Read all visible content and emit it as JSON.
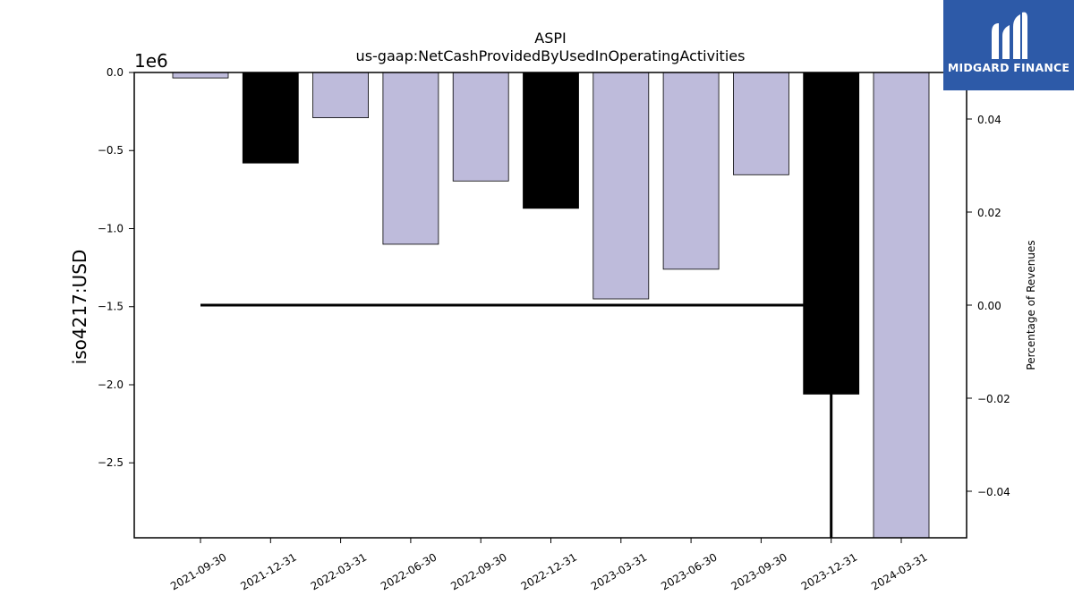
{
  "logo": {
    "text": "MIDGARD FINANCE",
    "icon": "midgard-m-logo-icon",
    "background": "#2d5aa8"
  },
  "chart_data": {
    "type": "bar",
    "title": "ASPI",
    "subtitle": "us-gaap:NetCashProvidedByUsedInOperatingActivities",
    "ylabel": "iso4217:USD",
    "ylabel_right": "Percentage of Revenues",
    "y_offset_label": "1e6",
    "categories": [
      "2021-09-30",
      "2021-12-31",
      "2022-03-31",
      "2022-06-30",
      "2022-09-30",
      "2022-12-31",
      "2023-03-31",
      "2023-06-30",
      "2023-09-30",
      "2023-12-31",
      "2024-03-31"
    ],
    "values": [
      -35000,
      -580000,
      -290000,
      -1100000,
      -695000,
      -870000,
      -1450000,
      -1260000,
      -655000,
      -2060000,
      -2980000
    ],
    "bar_colors": [
      "#bebbdb",
      "#000000",
      "#bebbdb",
      "#bebbdb",
      "#bebbdb",
      "#000000",
      "#bebbdb",
      "#bebbdb",
      "#bebbdb",
      "#000000",
      "#bebbdb"
    ],
    "ylim": [
      -2980000,
      0
    ],
    "yticks": [
      0.0,
      -0.5,
      -1.0,
      -1.5,
      -2.0,
      -2.5
    ],
    "ytick_labels": [
      "0.0",
      "−0.5",
      "−1.0",
      "−1.5",
      "−2.0",
      "−2.5"
    ],
    "secondary_axis": {
      "ylim": [
        -0.05,
        0.05
      ],
      "yticks": [
        0.04,
        0.02,
        0.0,
        -0.02,
        -0.04
      ],
      "ytick_labels": [
        "0.04",
        "0.02",
        "0.00",
        "−0.02",
        "−0.04"
      ],
      "line": {
        "x": [
          "2021-09-30",
          "2021-12-31",
          "2022-03-31",
          "2022-06-30",
          "2022-09-30",
          "2022-12-31",
          "2023-03-31",
          "2023-06-30",
          "2023-09-30",
          "2023-12-31",
          "2023-12-31"
        ],
        "values": [
          0.0,
          0.0,
          0.0,
          0.0,
          0.0,
          0.0,
          0.0,
          0.0,
          0.0,
          0.0,
          -0.05
        ],
        "color": "#000000"
      }
    },
    "grid": false,
    "legend": "none"
  }
}
